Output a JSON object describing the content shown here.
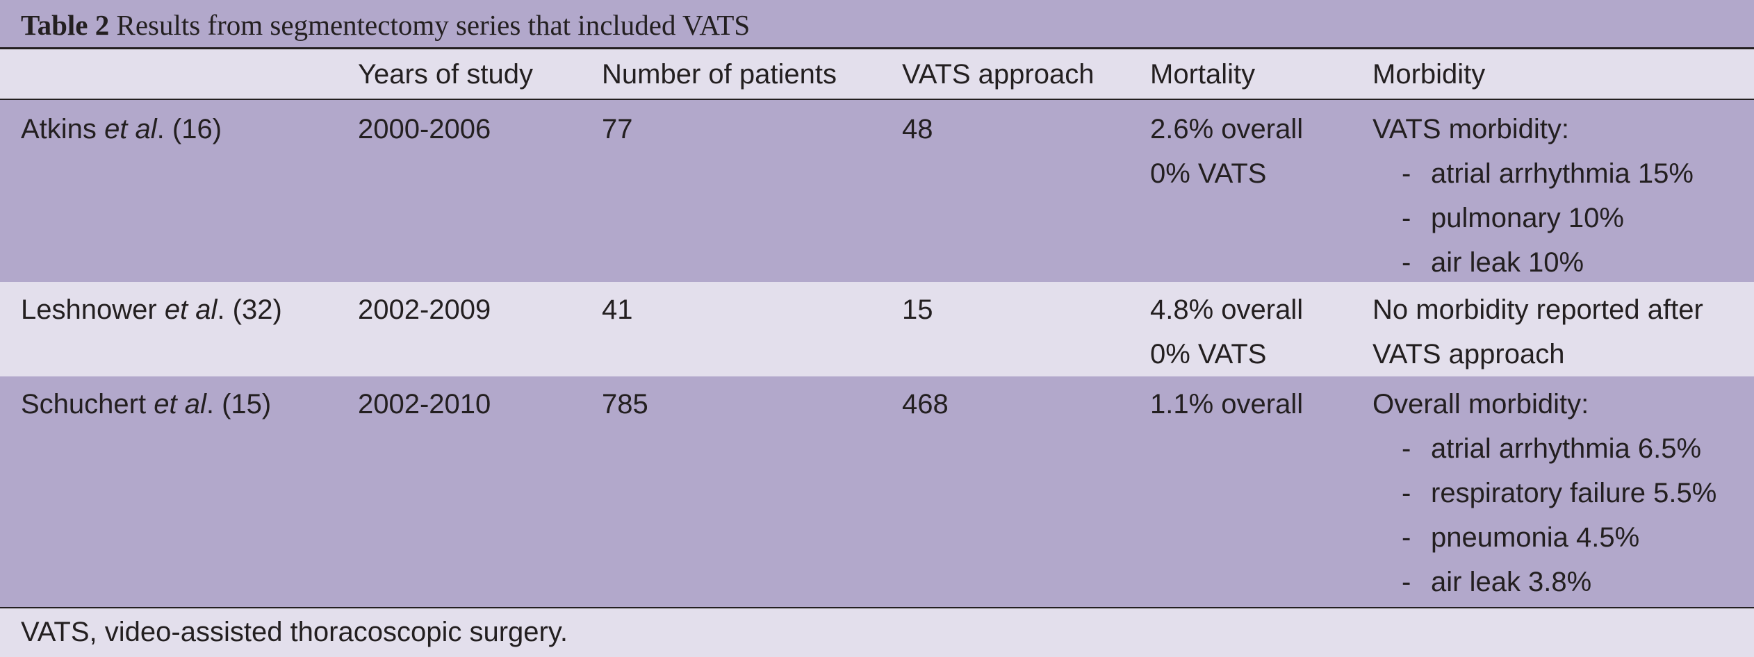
{
  "caption": {
    "label": "Table 2",
    "title": "Results from segmentectomy series that included VATS"
  },
  "columns": [
    "",
    "Years of study",
    "Number of patients",
    "VATS approach",
    "Mortality",
    "Morbidity"
  ],
  "rows": [
    {
      "study_author": "Atkins",
      "study_etal": "et al",
      "study_ref": ". (16)",
      "years": "2000-2006",
      "patients": "77",
      "vats": "48",
      "mortality": [
        "2.6% overall",
        "0% VATS"
      ],
      "morbidity_heading": "VATS morbidity:",
      "morbidity_items": [
        "atrial arrhythmia 15%",
        "pulmonary 10%",
        "air leak 10%"
      ]
    },
    {
      "study_author": "Leshnower",
      "study_etal": "et al",
      "study_ref": ". (32)",
      "years": "2002-2009",
      "patients": "41",
      "vats": "15",
      "mortality": [
        "4.8% overall",
        "0% VATS"
      ],
      "morbidity_heading": "No morbidity reported after",
      "morbidity_heading_2": "VATS approach"
    },
    {
      "study_author": "Schuchert",
      "study_etal": "et al",
      "study_ref": ". (15)",
      "years": "2002-2010",
      "patients": "785",
      "vats": "468",
      "mortality": [
        "1.1% overall"
      ],
      "morbidity_heading": "Overall morbidity:",
      "morbidity_items": [
        "atrial arrhythmia 6.5%",
        "respiratory failure 5.5%",
        "pneumonia 4.5%",
        "air leak 3.8%"
      ]
    }
  ],
  "footnote": "VATS, video-assisted thoracoscopic surgery."
}
